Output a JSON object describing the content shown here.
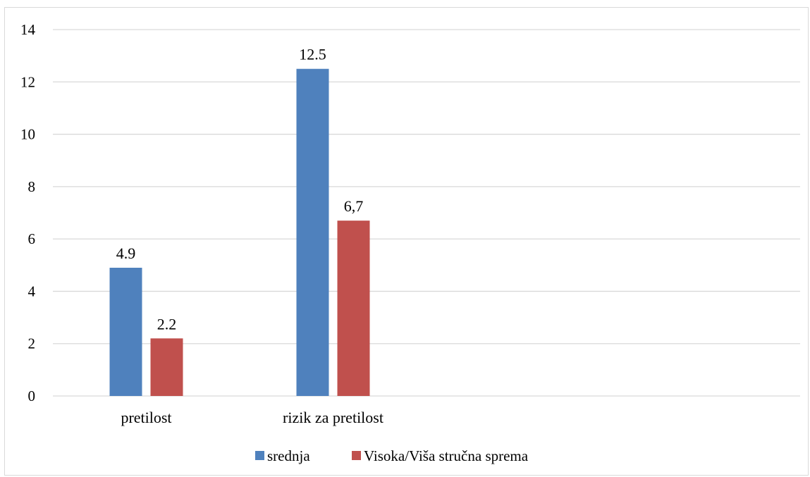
{
  "chart_data": {
    "type": "bar",
    "categories": [
      "pretilost",
      "rizik za pretilost"
    ],
    "series": [
      {
        "name": "srednja",
        "color": "#4f81bd",
        "values": [
          4.9,
          12.5
        ],
        "labels": [
          "4.9",
          "12.5"
        ]
      },
      {
        "name": "Visoka/Viša stručna sprema",
        "color": "#c0504d",
        "values": [
          2.2,
          6.7
        ],
        "labels": [
          "2.2",
          "6,7"
        ]
      }
    ],
    "title": "",
    "xlabel": "",
    "ylabel": "",
    "ylim": [
      0,
      14
    ],
    "yticks": [
      0,
      2,
      4,
      6,
      8,
      10,
      12,
      14
    ],
    "grid": true,
    "legend_position": "bottom"
  }
}
